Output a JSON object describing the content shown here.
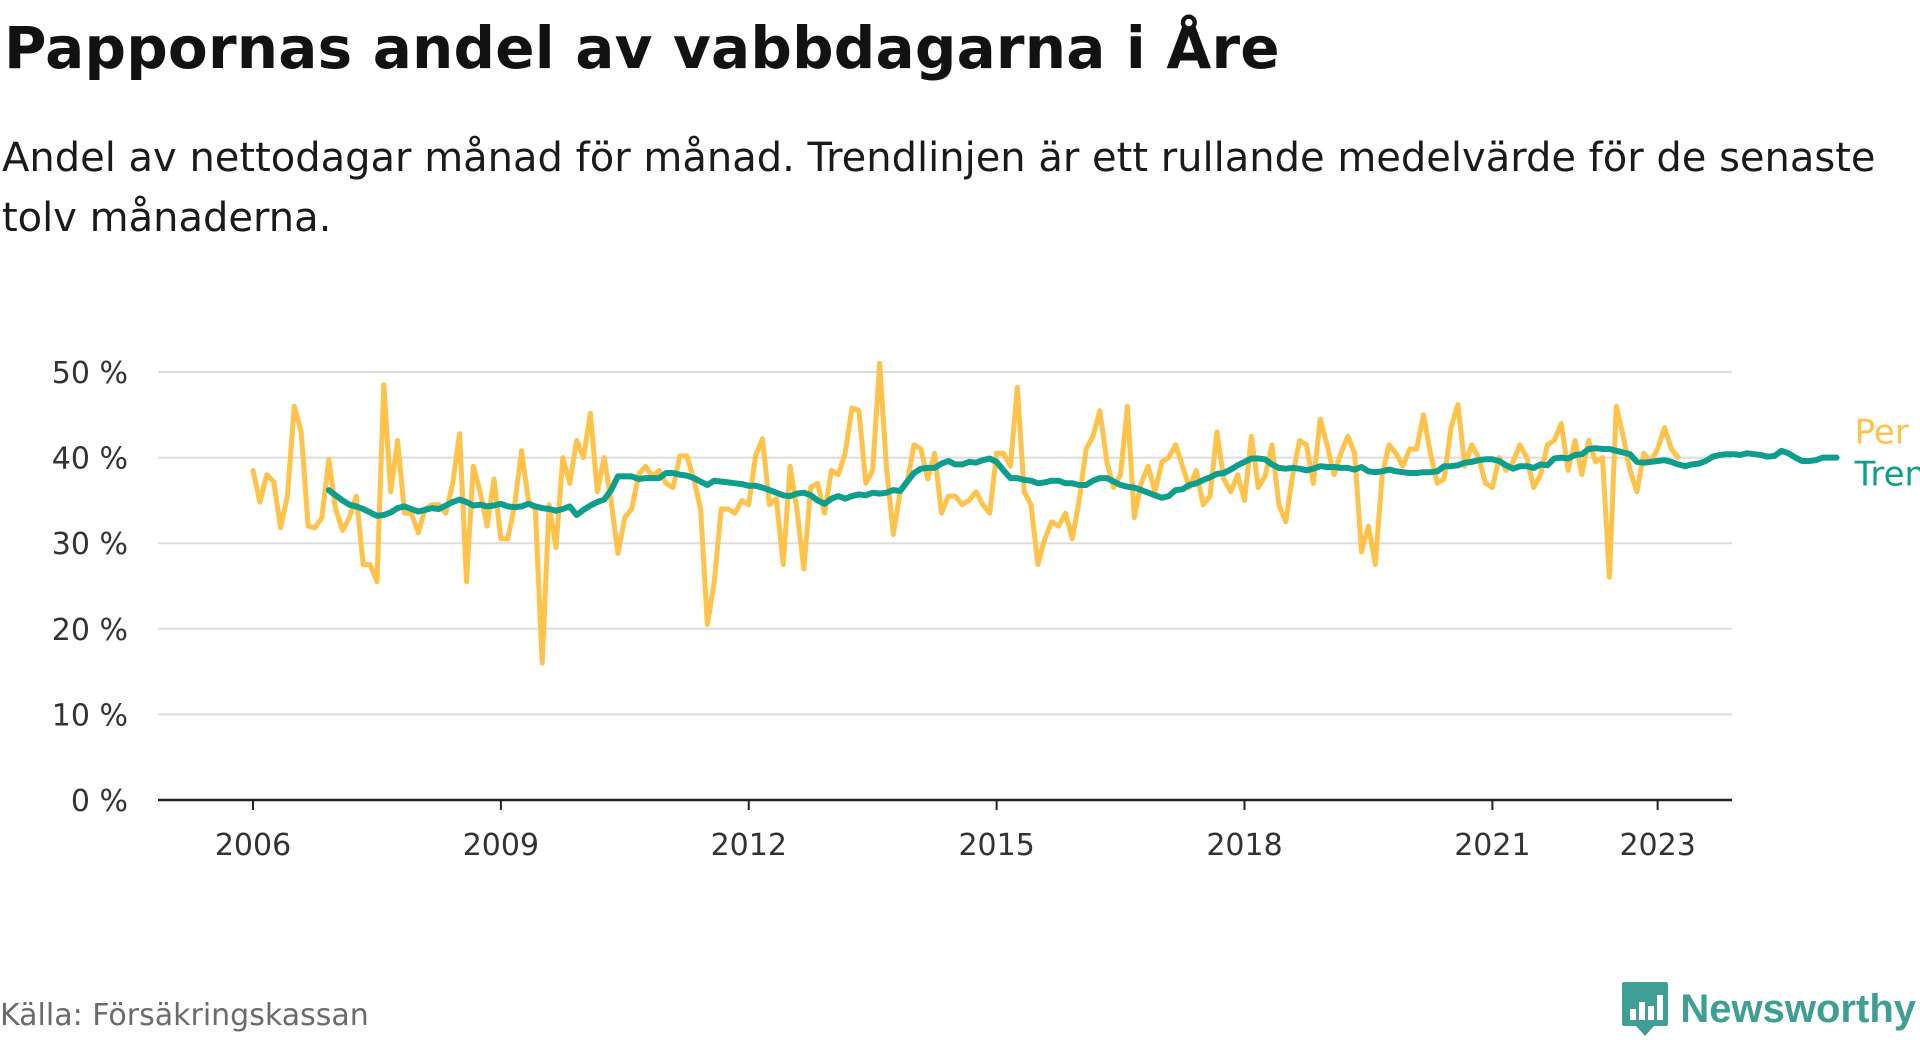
{
  "header": {
    "title": "Pappornas andel av vabbdagarna i Åre",
    "subtitle": "Andel av nettodagar månad för månad. Trendlinjen är ett rullande medelvärde för de senaste tolv månaderna."
  },
  "footer": {
    "source": "Källa: Försäkringskassan",
    "brand": "Newsworthy",
    "brand_icon": "bar-chart-speech-bubble-icon"
  },
  "colors": {
    "monthly": "#FFC24A",
    "trend": "#0E9E8E",
    "grid": "#dddddd",
    "axis": "#222222",
    "brand": "#3f9e95"
  },
  "chart_data": {
    "type": "line",
    "title": "Pappornas andel av vabbdagarna i Åre",
    "xlabel": "",
    "ylabel": "",
    "x_unit": "decimal year",
    "xlim": [
      2004.85,
      2023.9
    ],
    "ylim": [
      0,
      50
    ],
    "y_ticks": [
      0,
      10,
      20,
      30,
      40,
      50
    ],
    "y_tick_labels": [
      "0 %",
      "10 %",
      "20 %",
      "30 %",
      "40 %",
      "50 %"
    ],
    "x_ticks": [
      2006,
      2009,
      2012,
      2015,
      2018,
      2021,
      2023
    ],
    "x_tick_labels": [
      "2006",
      "2009",
      "2012",
      "2015",
      "2018",
      "2021",
      "2023"
    ],
    "grid": true,
    "legend": "right-end inline labels",
    "series": [
      {
        "name": "Per månad",
        "color": "#FFC24A",
        "start": 2006.0,
        "step": 0.08333,
        "values": [
          38.5,
          34.8,
          38.0,
          37.2,
          31.8,
          35.5,
          46.0,
          43.0,
          32.0,
          31.8,
          33.0,
          39.8,
          34.0,
          31.5,
          33.0,
          35.5,
          27.5,
          27.5,
          25.5,
          48.5,
          36.0,
          42.0,
          33.5,
          33.5,
          31.2,
          34.0,
          34.5,
          34.5,
          33.5,
          37.0,
          42.8,
          25.5,
          39.0,
          36.0,
          32.0,
          37.5,
          30.5,
          30.5,
          34.5,
          40.8,
          35.0,
          34.0,
          16.0,
          34.5,
          29.5,
          40.0,
          37.0,
          42.0,
          40.0,
          45.2,
          36.0,
          40.0,
          35.0,
          28.8,
          33.0,
          34.0,
          38.0,
          39.0,
          37.8,
          38.5,
          37.0,
          36.5,
          40.2,
          40.2,
          37.5,
          34.0,
          20.5,
          25.5,
          34.0,
          34.0,
          33.5,
          35.0,
          34.5,
          40.2,
          42.2,
          34.5,
          35.2,
          27.5,
          39.0,
          34.0,
          27.0,
          36.5,
          37.0,
          33.5,
          38.5,
          38.0,
          40.5,
          45.8,
          45.5,
          37.0,
          38.5,
          51.0,
          39.0,
          31.0,
          36.0,
          37.0,
          41.5,
          41.0,
          37.5,
          40.5,
          33.5,
          35.5,
          35.5,
          34.5,
          35.0,
          36.0,
          34.5,
          33.5,
          40.5,
          40.5,
          39.0,
          48.2,
          36.0,
          34.5,
          27.5,
          30.5,
          32.5,
          32.0,
          33.5,
          30.5,
          35.0,
          41.0,
          42.5,
          45.5,
          39.5,
          36.5,
          38.0,
          46.0,
          33.0,
          37.0,
          39.0,
          36.0,
          39.5,
          40.0,
          41.5,
          39.0,
          36.5,
          38.5,
          34.5,
          35.5,
          43.0,
          37.5,
          36.0,
          38.0,
          35.0,
          42.5,
          36.5,
          37.8,
          41.5,
          34.5,
          32.5,
          38.0,
          42.0,
          41.5,
          37.0,
          44.5,
          41.5,
          38.0,
          40.5,
          42.5,
          40.5,
          29.0,
          32.0,
          27.5,
          38.0,
          41.5,
          40.5,
          39.0,
          41.0,
          41.0,
          45.0,
          40.5,
          37.0,
          37.5,
          43.5,
          46.2,
          39.0,
          41.5,
          40.0,
          37.0,
          36.5,
          40.0,
          38.5,
          39.5,
          41.5,
          40.0,
          36.5,
          38.0,
          41.5,
          42.0,
          44.0,
          38.5,
          42.0,
          38.0,
          42.0,
          39.5,
          40.0,
          26.0,
          46.0,
          42.5,
          38.5,
          36.0,
          40.5,
          39.5,
          41.0,
          43.5,
          41.0,
          40.0
        ]
      },
      {
        "name": "Trend",
        "color": "#0E9E8E",
        "start": 2006.9167,
        "step": 0.08333,
        "values": [
          36.2,
          35.6,
          35.0,
          34.5,
          34.3,
          34.0,
          33.6,
          33.2,
          33.3,
          33.6,
          34.1,
          34.3,
          34.0,
          33.7,
          33.9,
          34.1,
          34.0,
          34.4,
          34.8,
          35.1,
          34.8,
          34.4,
          34.5,
          34.3,
          34.4,
          34.6,
          34.3,
          34.2,
          34.3,
          34.6,
          34.3,
          34.1,
          34.0,
          33.8,
          34.0,
          34.3,
          33.3,
          33.9,
          34.4,
          34.8,
          35.1,
          36.2,
          37.8,
          37.8,
          37.8,
          37.5,
          37.6,
          37.6,
          37.6,
          38.2,
          38.2,
          38.0,
          37.9,
          37.6,
          37.2,
          36.8,
          37.3,
          37.2,
          37.1,
          37.0,
          36.9,
          36.7,
          36.7,
          36.5,
          36.2,
          35.9,
          35.6,
          35.5,
          35.8,
          35.9,
          35.6,
          35.0,
          34.6,
          35.2,
          35.5,
          35.2,
          35.5,
          35.7,
          35.6,
          35.9,
          35.8,
          35.9,
          36.2,
          36.1,
          37.2,
          38.2,
          38.7,
          38.8,
          38.8,
          39.3,
          39.6,
          39.2,
          39.2,
          39.5,
          39.4,
          39.7,
          39.9,
          39.5,
          38.5,
          37.6,
          37.6,
          37.4,
          37.3,
          37.0,
          37.1,
          37.3,
          37.3,
          37.0,
          37.0,
          36.8,
          36.8,
          37.3,
          37.6,
          37.6,
          37.2,
          36.8,
          36.6,
          36.5,
          36.2,
          35.9,
          35.6,
          35.3,
          35.5,
          36.2,
          36.3,
          36.8,
          37.0,
          37.4,
          37.7,
          38.1,
          38.2,
          38.6,
          39.1,
          39.5,
          39.9,
          39.9,
          39.8,
          39.2,
          38.8,
          38.7,
          38.8,
          38.7,
          38.5,
          38.7,
          39.0,
          38.9,
          38.9,
          38.8,
          38.8,
          38.6,
          38.9,
          38.4,
          38.3,
          38.4,
          38.6,
          38.4,
          38.3,
          38.2,
          38.2,
          38.3,
          38.3,
          38.4,
          39.0,
          39.0,
          39.1,
          39.4,
          39.5,
          39.7,
          39.8,
          39.8,
          39.6,
          39.1,
          38.7,
          39.0,
          39.0,
          38.8,
          39.2,
          39.1,
          39.9,
          40.0,
          39.9,
          40.3,
          40.4,
          41.0,
          41.1,
          41.0,
          41.0,
          40.8,
          40.6,
          40.4,
          39.5,
          39.4,
          39.5,
          39.6,
          39.7,
          39.5,
          39.2,
          39.0,
          39.2,
          39.3,
          39.6,
          40.1,
          40.3,
          40.4,
          40.4,
          40.3,
          40.5,
          40.4,
          40.3,
          40.1,
          40.2,
          40.8,
          40.5,
          40.0,
          39.6,
          39.6,
          39.7,
          40.0,
          40.0,
          40.0
        ]
      }
    ]
  }
}
